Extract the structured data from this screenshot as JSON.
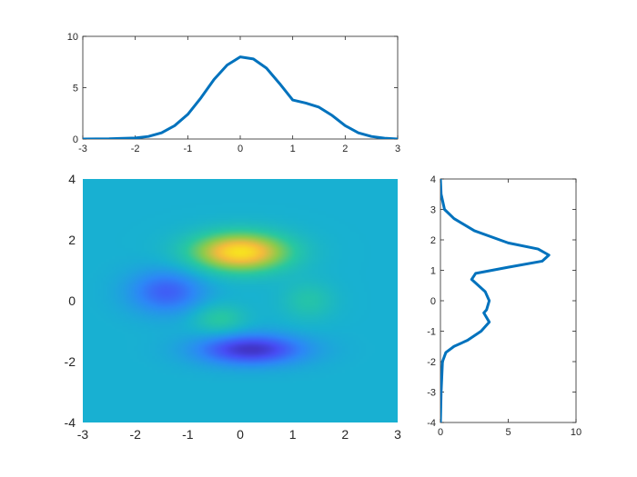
{
  "chart_data": [
    {
      "id": "top",
      "type": "line",
      "title": "",
      "xlabel": "",
      "ylabel": "",
      "xlim": [
        -3,
        3
      ],
      "ylim": [
        0,
        10
      ],
      "xticks": [
        "-3",
        "-2",
        "-1",
        "0",
        "1",
        "2",
        "3"
      ],
      "yticks": [
        "0",
        "5",
        "10"
      ],
      "grid": false,
      "series": [
        {
          "color": "#0072BD",
          "x": [
            -3,
            -2.5,
            -2,
            -1.75,
            -1.5,
            -1.25,
            -1,
            -0.75,
            -0.5,
            -0.25,
            0,
            0.25,
            0.5,
            0.75,
            1,
            1.25,
            1.5,
            1.75,
            2,
            2.25,
            2.5,
            2.75,
            3
          ],
          "y": [
            0.0,
            0.02,
            0.1,
            0.25,
            0.6,
            1.3,
            2.4,
            4.0,
            5.8,
            7.2,
            8.0,
            7.8,
            6.9,
            5.4,
            3.8,
            3.5,
            3.1,
            2.3,
            1.3,
            0.6,
            0.25,
            0.08,
            0.0
          ]
        }
      ]
    },
    {
      "id": "image",
      "type": "heatmap",
      "title": "",
      "xlabel": "",
      "ylabel": "",
      "xlim": [
        -3,
        3
      ],
      "ylim": [
        -4,
        4
      ],
      "xticks": [
        "-3",
        "-2",
        "-1",
        "0",
        "1",
        "2",
        "3"
      ],
      "yticks": [
        "-4",
        "-2",
        "0",
        "2",
        "4"
      ],
      "colormap": "parula",
      "components": [
        {
          "x": 0.0,
          "y": 1.6,
          "sx": 0.65,
          "sy": 0.45,
          "amp": 1.0
        },
        {
          "x": -1.4,
          "y": 0.3,
          "sx": 0.5,
          "sy": 0.5,
          "amp": -0.45
        },
        {
          "x": 0.2,
          "y": -1.6,
          "sx": 0.7,
          "sy": 0.35,
          "amp": -0.7
        },
        {
          "x": -0.4,
          "y": -0.6,
          "sx": 0.35,
          "sy": 0.35,
          "amp": 0.28
        },
        {
          "x": 1.3,
          "y": 0.0,
          "sx": 0.35,
          "sy": 0.45,
          "amp": 0.22
        }
      ]
    },
    {
      "id": "side",
      "type": "line",
      "title": "",
      "xlabel": "",
      "ylabel": "",
      "xlim": [
        0,
        10
      ],
      "ylim": [
        -4,
        4
      ],
      "xticks": [
        "0",
        "5",
        "10"
      ],
      "yticks": [
        "-4",
        "-3",
        "-2",
        "-1",
        "0",
        "1",
        "2",
        "3",
        "4"
      ],
      "grid": false,
      "series": [
        {
          "color": "#0072BD",
          "x": [
            0.0,
            0.05,
            0.15,
            0.4,
            1.0,
            2.0,
            3.0,
            3.6,
            3.2,
            3.4,
            3.6,
            3.3,
            2.3,
            2.6,
            5.0,
            7.5,
            8.0,
            7.2,
            5.0,
            2.5,
            1.0,
            0.3,
            0.05,
            0.0
          ],
          "y": [
            -4.0,
            -3.0,
            -2.0,
            -1.7,
            -1.5,
            -1.3,
            -1.0,
            -0.7,
            -0.4,
            -0.3,
            0.0,
            0.3,
            0.7,
            0.9,
            1.1,
            1.3,
            1.5,
            1.7,
            1.9,
            2.3,
            2.7,
            3.0,
            3.5,
            4.0
          ]
        }
      ]
    }
  ]
}
